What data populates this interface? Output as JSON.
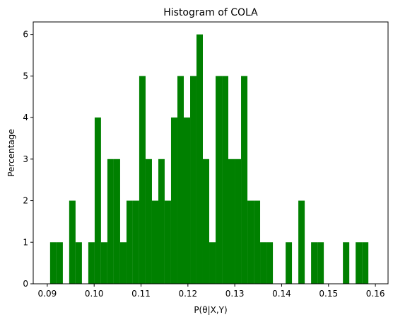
{
  "chart_data": {
    "type": "histogram",
    "title": "Histogram of COLA",
    "x_label": "P(θ|X,Y)",
    "y_label": "Percentage",
    "color": "#008000",
    "bins": [
      0.0906,
      0.09196,
      0.09332,
      0.09467,
      0.09603,
      0.09739,
      0.09875,
      0.10011,
      0.10146,
      0.10282,
      0.10418,
      0.10554,
      0.1069,
      0.10825,
      0.10961,
      0.11097,
      0.11233,
      0.11369,
      0.11504,
      0.1164,
      0.11776,
      0.11912,
      0.12048,
      0.12183,
      0.12319,
      0.12455,
      0.12591,
      0.12727,
      0.12862,
      0.12998,
      0.13134,
      0.1327,
      0.13406,
      0.13541,
      0.13677,
      0.13813,
      0.13949,
      0.14085,
      0.1422,
      0.14356,
      0.14492,
      0.14628,
      0.14764,
      0.14899,
      0.15035,
      0.15171,
      0.15307,
      0.15443,
      0.15578,
      0.15714,
      0.1585
    ],
    "values": [
      1,
      1,
      0,
      2,
      1,
      0,
      1,
      4,
      1,
      3,
      3,
      1,
      2,
      2,
      5,
      3,
      2,
      3,
      2,
      4,
      5,
      4,
      5,
      6,
      3,
      1,
      5,
      5,
      3,
      3,
      5,
      2,
      2,
      1,
      1,
      0,
      0,
      1,
      0,
      2,
      0,
      1,
      1,
      0,
      0,
      0,
      1,
      0,
      1,
      1
    ],
    "xlim": [
      0.087,
      0.1627
    ],
    "ylim": [
      0,
      6.3
    ],
    "xticks": [
      {
        "value": 0.09,
        "label": "0.09"
      },
      {
        "value": 0.1,
        "label": "0.10"
      },
      {
        "value": 0.11,
        "label": "0.11"
      },
      {
        "value": 0.12,
        "label": "0.12"
      },
      {
        "value": 0.13,
        "label": "0.13"
      },
      {
        "value": 0.14,
        "label": "0.14"
      },
      {
        "value": 0.15,
        "label": "0.15"
      },
      {
        "value": 0.16,
        "label": "0.16"
      }
    ],
    "yticks": [
      0,
      1,
      2,
      3,
      4,
      5,
      6
    ],
    "grid": false
  }
}
